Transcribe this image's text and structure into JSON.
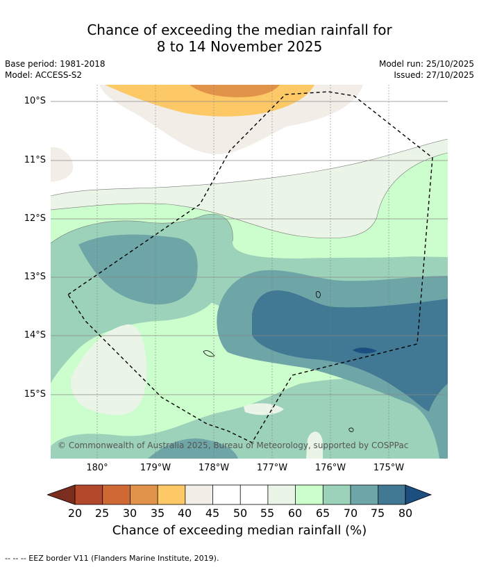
{
  "title": {
    "line1": "Chance of exceeding the median rainfall for",
    "line2": "8 to 14 November 2025"
  },
  "meta": {
    "base_period": "Base period: 1981-2018",
    "model": "Model: ACCESS-S2",
    "model_run": "Model run: 25/10/2025",
    "issued": "Issued: 27/10/2025"
  },
  "map": {
    "copyright": "© Commonwealth of Australia 2025, Bureau of Meteorology, supported by COSPPac",
    "lat_labels": [
      "10°S",
      "11°S",
      "12°S",
      "13°S",
      "14°S",
      "15°S"
    ],
    "lon_labels": [
      "180°",
      "179°W",
      "178°W",
      "177°W",
      "176°W",
      "175°W"
    ]
  },
  "colorbar": {
    "ticks": [
      "20",
      "25",
      "30",
      "35",
      "40",
      "45",
      "50",
      "55",
      "60",
      "65",
      "70",
      "75",
      "80"
    ],
    "title": "Chance of exceeding median rainfall (%)",
    "colors": [
      "#7b2e1f",
      "#b3482a",
      "#cf6a35",
      "#e19349",
      "#fdc966",
      "#f2ede7",
      "#ffffff",
      "#ffffff",
      "#eaf5e8",
      "#ccfdcc",
      "#9dd2ba",
      "#6ea5a7",
      "#417894",
      "#1c4f80"
    ]
  },
  "legend": {
    "text": "--  --  -- EEZ border V11 (Flanders Marine Institute, 2019)."
  }
}
